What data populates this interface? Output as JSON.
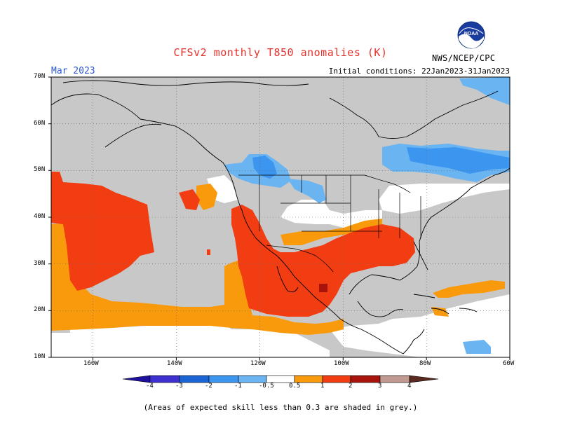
{
  "header": {
    "title": "CFSv2 monthly T850 anomalies (K)",
    "valid_month": "Mar 2023",
    "initial_conditions": "Initial conditions: 22Jan2023-31Jan2023",
    "agency": "NWS/NCEP/CPC",
    "logo_text": "NOAA"
  },
  "axes": {
    "lat_labels": [
      "70N",
      "60N",
      "50N",
      "40N",
      "30N",
      "20N",
      "10N"
    ],
    "lon_labels": [
      "160W",
      "140W",
      "120W",
      "100W",
      "80W",
      "60W"
    ]
  },
  "colorbar": {
    "labels": [
      "-4",
      "-3",
      "-2",
      "-1",
      "-0.5",
      "0.5",
      "1",
      "2",
      "3",
      "4"
    ],
    "colors": [
      "#1e10a0",
      "#3d2fd0",
      "#1a64d6",
      "#3c96f0",
      "#6ab4f2",
      "#ffffff",
      "#f99a0c",
      "#f23c12",
      "#a8140c",
      "#c09a90",
      "#5a2a20"
    ]
  },
  "legend": {
    "grey_note": "(Areas of expected skill less than 0.3 are shaded in grey.)"
  },
  "map_data": {
    "projection": "equirectangular",
    "lon_range": [
      -170,
      -60
    ],
    "lat_range": [
      10,
      70
    ],
    "shading_colors": {
      "low_skill": "#c8c8c8",
      "warm_0_5_to_1": "#f99a0c",
      "warm_1_to_2": "#f23c12",
      "warm_2_to_3": "#a8140c",
      "cool_minus1_to_minus0_5": "#6ab4f2",
      "cool_minus2_to_minus1": "#3c96f0"
    }
  }
}
